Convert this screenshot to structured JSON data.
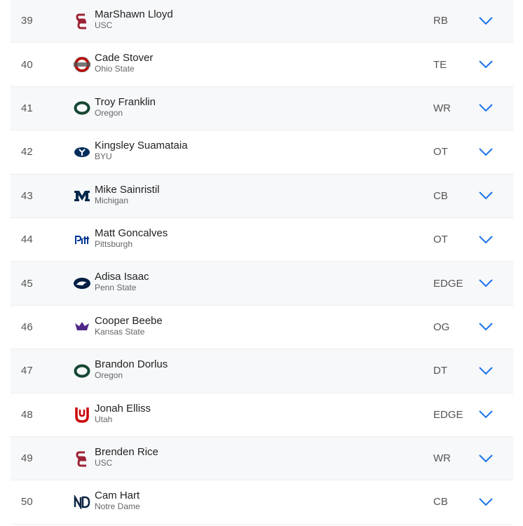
{
  "picks": [
    {
      "pick": "39",
      "name": "MarShawn Lloyd",
      "school": "USC",
      "position": "RB",
      "logo": "usc",
      "color": "#9d2235"
    },
    {
      "pick": "40",
      "name": "Cade Stover",
      "school": "Ohio State",
      "position": "TE",
      "logo": "ohio-state",
      "color": "#bb0000"
    },
    {
      "pick": "41",
      "name": "Troy Franklin",
      "school": "Oregon",
      "position": "WR",
      "logo": "oregon",
      "color": "#154733"
    },
    {
      "pick": "42",
      "name": "Kingsley Suamataia",
      "school": "BYU",
      "position": "OT",
      "logo": "byu",
      "color": "#002e5d"
    },
    {
      "pick": "43",
      "name": "Mike Sainristil",
      "school": "Michigan",
      "position": "CB",
      "logo": "michigan",
      "color": "#00274c"
    },
    {
      "pick": "44",
      "name": "Matt Goncalves",
      "school": "Pittsburgh",
      "position": "OT",
      "logo": "pitt",
      "color": "#003594"
    },
    {
      "pick": "45",
      "name": "Adisa Isaac",
      "school": "Penn State",
      "position": "EDGE",
      "logo": "penn-state",
      "color": "#041e42"
    },
    {
      "pick": "46",
      "name": "Cooper Beebe",
      "school": "Kansas State",
      "position": "OG",
      "logo": "kansas-state",
      "color": "#512888"
    },
    {
      "pick": "47",
      "name": "Brandon Dorlus",
      "school": "Oregon",
      "position": "DT",
      "logo": "oregon",
      "color": "#154733"
    },
    {
      "pick": "48",
      "name": "Jonah Elliss",
      "school": "Utah",
      "position": "EDGE",
      "logo": "utah",
      "color": "#cc0000"
    },
    {
      "pick": "49",
      "name": "Brenden Rice",
      "school": "USC",
      "position": "WR",
      "logo": "usc",
      "color": "#9d2235"
    },
    {
      "pick": "50",
      "name": "Cam Hart",
      "school": "Notre Dame",
      "position": "CB",
      "logo": "notre-dame",
      "color": "#0c2340"
    }
  ],
  "accent": "#1a73e8"
}
